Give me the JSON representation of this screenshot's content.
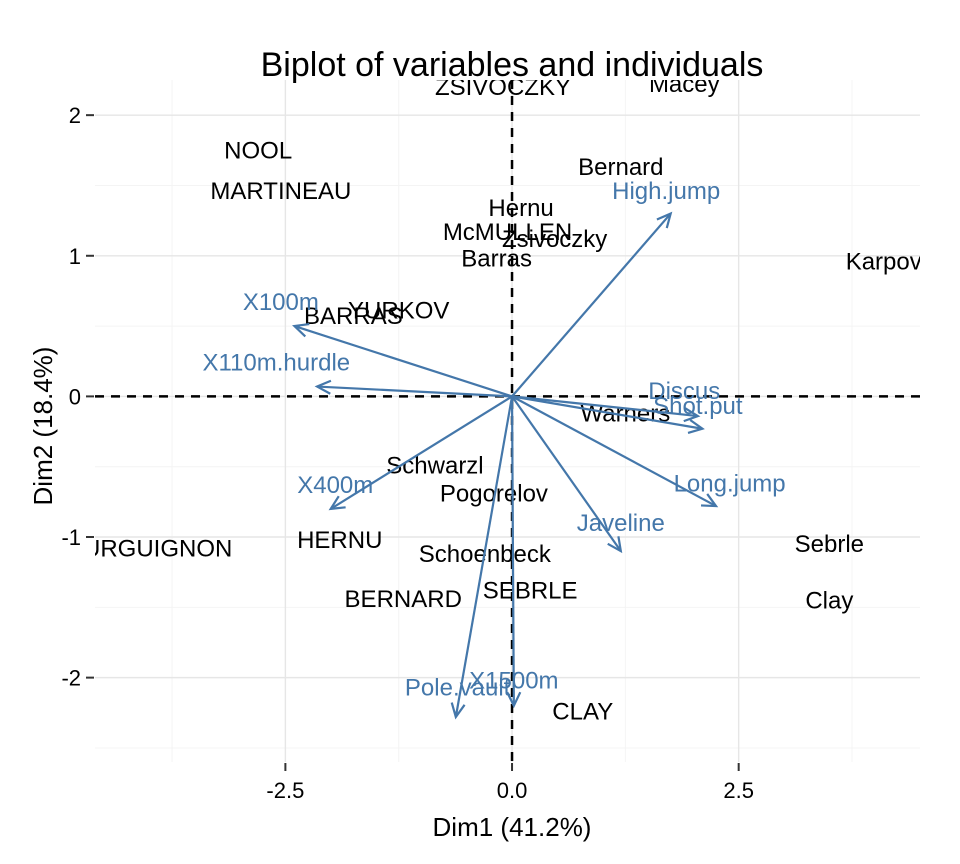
{
  "chart_data": {
    "type": "scatter",
    "title": "Biplot of variables and individuals",
    "xlabel": "Dim1 (41.2%)",
    "ylabel": "Dim2 (18.4%)",
    "xlim": [
      -4.6,
      4.5
    ],
    "ylim": [
      -2.6,
      2.25
    ],
    "xticks": [
      -2.5,
      0.0,
      2.5
    ],
    "xtick_labels": [
      "-2.5",
      "0.0",
      "2.5"
    ],
    "yticks": [
      -2,
      -1,
      0,
      1,
      2
    ],
    "ytick_labels": [
      "-2",
      "-1",
      "0",
      "1",
      "2"
    ],
    "grid": true,
    "variable_color": "#4477aa",
    "individuals": [
      {
        "label": "ZSIVOCZKY",
        "x": -0.1,
        "y": 2.2
      },
      {
        "label": "Macey",
        "x": 1.9,
        "y": 2.22
      },
      {
        "label": "NOOL",
        "x": -2.8,
        "y": 1.75
      },
      {
        "label": "MARTINEAU",
        "x": -2.55,
        "y": 1.46
      },
      {
        "label": "Bernard",
        "x": 1.2,
        "y": 1.63
      },
      {
        "label": "Hernu",
        "x": 0.1,
        "y": 1.34
      },
      {
        "label": "McMULLEN",
        "x": -0.05,
        "y": 1.17
      },
      {
        "label": "Zsivoczky",
        "x": 0.47,
        "y": 1.12
      },
      {
        "label": "Barras",
        "x": -0.17,
        "y": 0.98
      },
      {
        "label": "Karpov",
        "x": 4.1,
        "y": 0.96
      },
      {
        "label": "YURKOV",
        "x": -1.25,
        "y": 0.61
      },
      {
        "label": "BARRAS",
        "x": -1.75,
        "y": 0.57
      },
      {
        "label": "Warners",
        "x": 1.25,
        "y": -0.12
      },
      {
        "label": "Schwarzl",
        "x": -0.85,
        "y": -0.49
      },
      {
        "label": "Pogorelov",
        "x": -0.2,
        "y": -0.69
      },
      {
        "label": "HERNU",
        "x": -1.9,
        "y": -1.02
      },
      {
        "label": "BOURGUIGNON",
        "x": -4.1,
        "y": -1.08
      },
      {
        "label": "Schoenbeck",
        "x": -0.3,
        "y": -1.12
      },
      {
        "label": "Sebrle",
        "x": 3.5,
        "y": -1.05
      },
      {
        "label": "SEBRLE",
        "x": 0.2,
        "y": -1.38
      },
      {
        "label": "BERNARD",
        "x": -1.2,
        "y": -1.44
      },
      {
        "label": "Clay",
        "x": 3.5,
        "y": -1.45
      },
      {
        "label": "CLAY",
        "x": 0.78,
        "y": -2.24
      }
    ],
    "variables": [
      {
        "label": "High.jump",
        "x": 1.75,
        "y": 1.3
      },
      {
        "label": "X100m",
        "x": -2.4,
        "y": 0.5
      },
      {
        "label": "X110m.hurdle",
        "x": -2.15,
        "y": 0.07
      },
      {
        "label": "Discus",
        "x": 2.05,
        "y": -0.14
      },
      {
        "label": "Shot.put",
        "x": 2.1,
        "y": -0.23
      },
      {
        "label": "Long.jump",
        "x": 2.25,
        "y": -0.78
      },
      {
        "label": "Javeline",
        "x": 1.2,
        "y": -1.1
      },
      {
        "label": "X400m",
        "x": -2.0,
        "y": -0.8
      },
      {
        "label": "X1500m",
        "x": 0.02,
        "y": -2.2
      },
      {
        "label": "Pole.vault",
        "x": -0.62,
        "y": -2.28
      }
    ],
    "variable_label_positions": [
      {
        "label": "High.jump",
        "x": 1.7,
        "y": 1.46
      },
      {
        "label": "X100m",
        "x": -2.55,
        "y": 0.67
      },
      {
        "label": "X110m.hurdle",
        "x": -2.6,
        "y": 0.24
      },
      {
        "label": "Discus",
        "x": 1.9,
        "y": 0.04
      },
      {
        "label": "Shot.put",
        "x": 2.05,
        "y": -0.07
      },
      {
        "label": "Long.jump",
        "x": 2.4,
        "y": -0.62
      },
      {
        "label": "Javeline",
        "x": 1.2,
        "y": -0.9
      },
      {
        "label": "X400m",
        "x": -1.95,
        "y": -0.63
      },
      {
        "label": "X1500m",
        "x": 0.02,
        "y": -2.02
      },
      {
        "label": "Pole.vault",
        "x": -0.6,
        "y": -2.07
      }
    ]
  }
}
